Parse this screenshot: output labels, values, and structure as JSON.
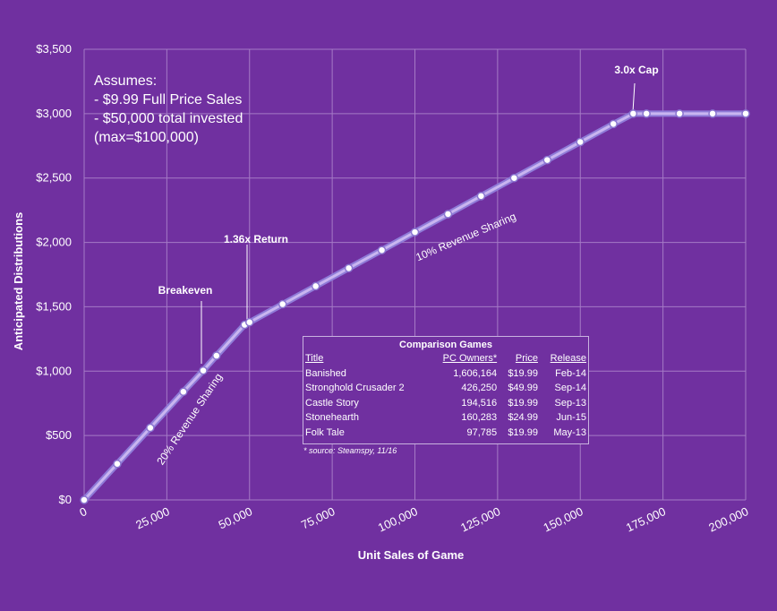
{
  "chart_data": {
    "type": "line",
    "x_label": "Unit Sales of Game",
    "y_label": "Anticipated Distributions",
    "xlim": [
      0,
      200000
    ],
    "ylim": [
      0,
      3500
    ],
    "x_ticks": [
      "0",
      "25,000",
      "50,000",
      "75,000",
      "100,000",
      "125,000",
      "150,000",
      "175,000",
      "200,000"
    ],
    "y_ticks": [
      "$0",
      "$500",
      "$1,000",
      "$1,500",
      "$2,000",
      "$2,500",
      "$3,000",
      "$3,500"
    ],
    "grid": true,
    "points": [
      {
        "x": 0,
        "y": 0
      },
      {
        "x": 10000,
        "y": 280
      },
      {
        "x": 20000,
        "y": 560
      },
      {
        "x": 30000,
        "y": 840
      },
      {
        "x": 36000,
        "y": 1005
      },
      {
        "x": 40000,
        "y": 1120
      },
      {
        "x": 48500,
        "y": 1360
      },
      {
        "x": 50000,
        "y": 1380
      },
      {
        "x": 60000,
        "y": 1520
      },
      {
        "x": 70000,
        "y": 1660
      },
      {
        "x": 80000,
        "y": 1800
      },
      {
        "x": 90000,
        "y": 1940
      },
      {
        "x": 100000,
        "y": 2080
      },
      {
        "x": 110000,
        "y": 2220
      },
      {
        "x": 120000,
        "y": 2360
      },
      {
        "x": 130000,
        "y": 2500
      },
      {
        "x": 140000,
        "y": 2640
      },
      {
        "x": 150000,
        "y": 2780
      },
      {
        "x": 160000,
        "y": 2920
      },
      {
        "x": 166000,
        "y": 3000
      },
      {
        "x": 170000,
        "y": 3000
      },
      {
        "x": 180000,
        "y": 3000
      },
      {
        "x": 190000,
        "y": 3000
      },
      {
        "x": 200000,
        "y": 3000
      }
    ],
    "annotations": {
      "breakeven": "Breakeven",
      "return": "1.36x Return",
      "cap": "3.0x Cap",
      "seg1": "20% Revenue Sharing",
      "seg2": "10% Revenue Sharing"
    }
  },
  "assumptions": [
    "Assumes:",
    "- $9.99 Full Price Sales",
    "- $50,000 total invested",
    "(max=$100,000)"
  ],
  "comparison": {
    "title": "Comparison Games",
    "headers": [
      "Title",
      "PC Owners*",
      "Price",
      "Release"
    ],
    "rows": [
      [
        "Banished",
        "1,606,164",
        "$19.99",
        "Feb-14"
      ],
      [
        "Stronghold Crusader 2",
        "426,250",
        "$49.99",
        "Sep-14"
      ],
      [
        "Castle Story",
        "194,516",
        "$19.99",
        "Sep-13"
      ],
      [
        "Stonehearth",
        "160,283",
        "$24.99",
        "Jun-15"
      ],
      [
        "Folk Tale",
        "97,785",
        "$19.99",
        "May-13"
      ]
    ],
    "source": "* source: Steamspy, 11/16"
  },
  "colors": {
    "background": "#7030a0",
    "grid": "#a57ac6",
    "line": "#c9b6f0",
    "line_glow": "#8f7bd8",
    "marker_fill": "#ffffff",
    "marker_stroke": "#8a74d0"
  }
}
